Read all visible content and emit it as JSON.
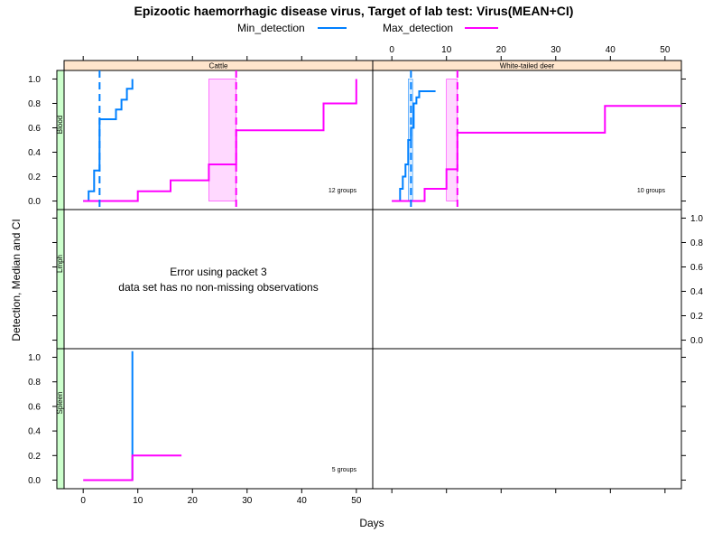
{
  "title": "Epizootic haemorrhagic disease virus, Target of lab test: Virus(MEAN+CI)",
  "legend": [
    {
      "label": "Min_detection",
      "color": "#0080ff"
    },
    {
      "label": "Max_detection",
      "color": "#ff00ff"
    }
  ],
  "xlabel": "Days",
  "ylabel": "Detection, Median and CI",
  "colors": {
    "min_line": "#0080ff",
    "max_line": "#ff00ff",
    "min_ci_fill": "#cce5ff",
    "max_ci_fill": "#ffccff",
    "col_strip": "#ffe5cc",
    "row_strip": "#ccffcc"
  },
  "chart_data": {
    "type": "line",
    "columns": [
      "Cattle",
      "White-tailed deer"
    ],
    "rows": [
      "Blood",
      "Lmph",
      "Spleen"
    ],
    "x_ticks": [
      0,
      10,
      20,
      30,
      40,
      50
    ],
    "y_ticks": [
      0.0,
      0.2,
      0.4,
      0.6,
      0.8,
      1.0
    ],
    "x_tick_labels": [
      "0",
      "10",
      "20",
      "30",
      "40",
      "50"
    ],
    "y_tick_labels": [
      "0.0",
      "0.2",
      "0.4",
      "0.6",
      "0.8",
      "1.0"
    ],
    "panels": [
      {
        "column": "Cattle",
        "row": "Blood",
        "groups_label": "12 groups",
        "xlim": [
          -3.5,
          53
        ],
        "ylim": [
          -0.07,
          1.07
        ],
        "series": [
          {
            "name": "Min_detection",
            "x": [
              0,
              1,
              1,
              2,
              2,
              3,
              3,
              6,
              6,
              7,
              7,
              8,
              8,
              9,
              9
            ],
            "y": [
              0,
              0,
              0.08,
              0.08,
              0.25,
              0.25,
              0.67,
              0.67,
              0.75,
              0.75,
              0.83,
              0.83,
              0.92,
              0.92,
              1.0
            ]
          },
          {
            "name": "Max_detection",
            "x": [
              0,
              10,
              10,
              16,
              16,
              23,
              23,
              28,
              28,
              44,
              44,
              50,
              50
            ],
            "y": [
              0,
              0,
              0.08,
              0.08,
              0.17,
              0.17,
              0.3,
              0.3,
              0.58,
              0.58,
              0.8,
              0.8,
              1.0
            ]
          }
        ],
        "medians": {
          "Min_detection": 3,
          "Max_detection": 28
        },
        "ci": {
          "Max_detection": [
            23,
            28
          ]
        }
      },
      {
        "column": "White-tailed deer",
        "row": "Blood",
        "groups_label": "10 groups",
        "xlim": [
          -3.5,
          53
        ],
        "ylim": [
          -0.07,
          1.07
        ],
        "series": [
          {
            "name": "Min_detection",
            "x": [
              0,
              1.5,
              1.5,
              2,
              2,
              2.5,
              2.5,
              3,
              3,
              3.5,
              3.5,
              4,
              4,
              4.5,
              4.5,
              5,
              5,
              8
            ],
            "y": [
              0,
              0,
              0.1,
              0.1,
              0.2,
              0.2,
              0.3,
              0.3,
              0.5,
              0.5,
              0.6,
              0.6,
              0.8,
              0.8,
              0.85,
              0.85,
              0.9,
              0.9
            ]
          },
          {
            "name": "Max_detection",
            "x": [
              0,
              6,
              6,
              10,
              10,
              12,
              12,
              39,
              39,
              53
            ],
            "y": [
              0,
              0,
              0.1,
              0.1,
              0.26,
              0.26,
              0.56,
              0.56,
              0.78,
              0.78
            ]
          }
        ],
        "medians": {
          "Min_detection": 3.5,
          "Max_detection": 12
        },
        "ci": {
          "Min_detection": [
            3,
            3.8
          ],
          "Max_detection": [
            10,
            12
          ]
        }
      },
      {
        "column": "Cattle",
        "row": "Lmph",
        "error": [
          "Error using packet 3",
          "data set has no non-missing observations"
        ],
        "xlim": [
          -3.5,
          53
        ],
        "ylim": [
          -0.07,
          1.07
        ]
      },
      {
        "column": "White-tailed deer",
        "row": "Lmph",
        "xlim": [
          -3.5,
          53
        ],
        "ylim": [
          -0.07,
          1.07
        ]
      },
      {
        "column": "Cattle",
        "row": "Spleen",
        "groups_label": "5 groups",
        "xlim": [
          -3.5,
          53
        ],
        "ylim": [
          -0.07,
          1.07
        ],
        "series": [
          {
            "name": "Min_detection",
            "x": [
              9,
              9
            ],
            "y": [
              0,
              1.05
            ]
          },
          {
            "name": "Max_detection",
            "x": [
              0,
              9,
              9,
              18
            ],
            "y": [
              0,
              0,
              0.2,
              0.2
            ]
          }
        ]
      },
      {
        "column": "White-tailed deer",
        "row": "Spleen",
        "xlim": [
          -3.5,
          53
        ],
        "ylim": [
          -0.07,
          1.07
        ]
      }
    ]
  }
}
